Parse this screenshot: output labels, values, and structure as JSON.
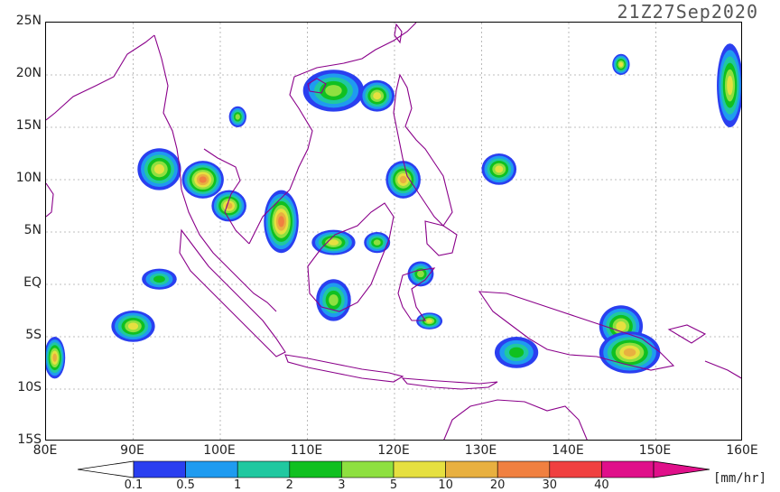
{
  "header": {
    "timestamp": "21Z27Sep2020"
  },
  "axes": {
    "lat_labels": [
      "25N",
      "20N",
      "15N",
      "10N",
      "5N",
      "EQ",
      "5S",
      "10S",
      "15S"
    ],
    "lon_labels": [
      "80E",
      "90E",
      "100E",
      "110E",
      "120E",
      "130E",
      "140E",
      "150E",
      "160E"
    ],
    "lat_range": [
      -15,
      25
    ],
    "lon_range": [
      80,
      160
    ],
    "grid": true
  },
  "legend": {
    "ticks": [
      "0.1",
      "0.5",
      "1",
      "2",
      "3",
      "5",
      "10",
      "20",
      "30",
      "40"
    ],
    "units": "[mm/hr]",
    "colors": [
      "#2a3ff0",
      "#1f9bf0",
      "#20c8a0",
      "#10c020",
      "#8ee040",
      "#e6e040",
      "#e8b040",
      "#f08040",
      "#f04040",
      "#e0108a"
    ]
  },
  "coast_color": "#8a008a",
  "rain_cells": [
    {
      "lon": 93,
      "lat": 11,
      "rx": 2.5,
      "ry": 2.0,
      "level": 5
    },
    {
      "lon": 98,
      "lat": 10,
      "rx": 2.4,
      "ry": 1.8,
      "level": 7
    },
    {
      "lon": 101,
      "lat": 7.5,
      "rx": 2.0,
      "ry": 1.5,
      "level": 6
    },
    {
      "lon": 107,
      "lat": 6,
      "rx": 2.0,
      "ry": 3.0,
      "level": 7
    },
    {
      "lon": 113,
      "lat": 18.5,
      "rx": 3.5,
      "ry": 2.0,
      "level": 4
    },
    {
      "lon": 121,
      "lat": 10,
      "rx": 2.0,
      "ry": 1.8,
      "level": 6
    },
    {
      "lon": 113,
      "lat": 4,
      "rx": 2.5,
      "ry": 1.2,
      "level": 5
    },
    {
      "lon": 113,
      "lat": -1.5,
      "rx": 2.0,
      "ry": 2.0,
      "level": 4
    },
    {
      "lon": 134,
      "lat": -6.5,
      "rx": 2.5,
      "ry": 1.5,
      "level": 3
    },
    {
      "lon": 146,
      "lat": -4,
      "rx": 2.5,
      "ry": 2.0,
      "level": 5
    },
    {
      "lon": 147,
      "lat": -6.5,
      "rx": 3.5,
      "ry": 2.0,
      "level": 6
    },
    {
      "lon": 158.5,
      "lat": 19,
      "rx": 1.5,
      "ry": 4.0,
      "level": 5
    },
    {
      "lon": 81,
      "lat": -7,
      "rx": 1.2,
      "ry": 2.0,
      "level": 6
    },
    {
      "lon": 93,
      "lat": 0.5,
      "rx": 2.0,
      "ry": 1.0,
      "level": 3
    },
    {
      "lon": 90,
      "lat": -4,
      "rx": 2.5,
      "ry": 1.5,
      "level": 5
    },
    {
      "lon": 132,
      "lat": 11,
      "rx": 2.0,
      "ry": 1.5,
      "level": 5
    },
    {
      "lon": 146,
      "lat": 21,
      "rx": 1.0,
      "ry": 1.0,
      "level": 5
    },
    {
      "lon": 102,
      "lat": 16,
      "rx": 1.0,
      "ry": 1.0,
      "level": 4
    },
    {
      "lon": 118,
      "lat": 18,
      "rx": 2.0,
      "ry": 1.5,
      "level": 5
    },
    {
      "lon": 123,
      "lat": 1,
      "rx": 1.5,
      "ry": 1.2,
      "level": 4
    },
    {
      "lon": 124,
      "lat": -3.5,
      "rx": 1.5,
      "ry": 0.8,
      "level": 5
    },
    {
      "lon": 118,
      "lat": 4,
      "rx": 1.5,
      "ry": 1.0,
      "level": 4
    }
  ]
}
